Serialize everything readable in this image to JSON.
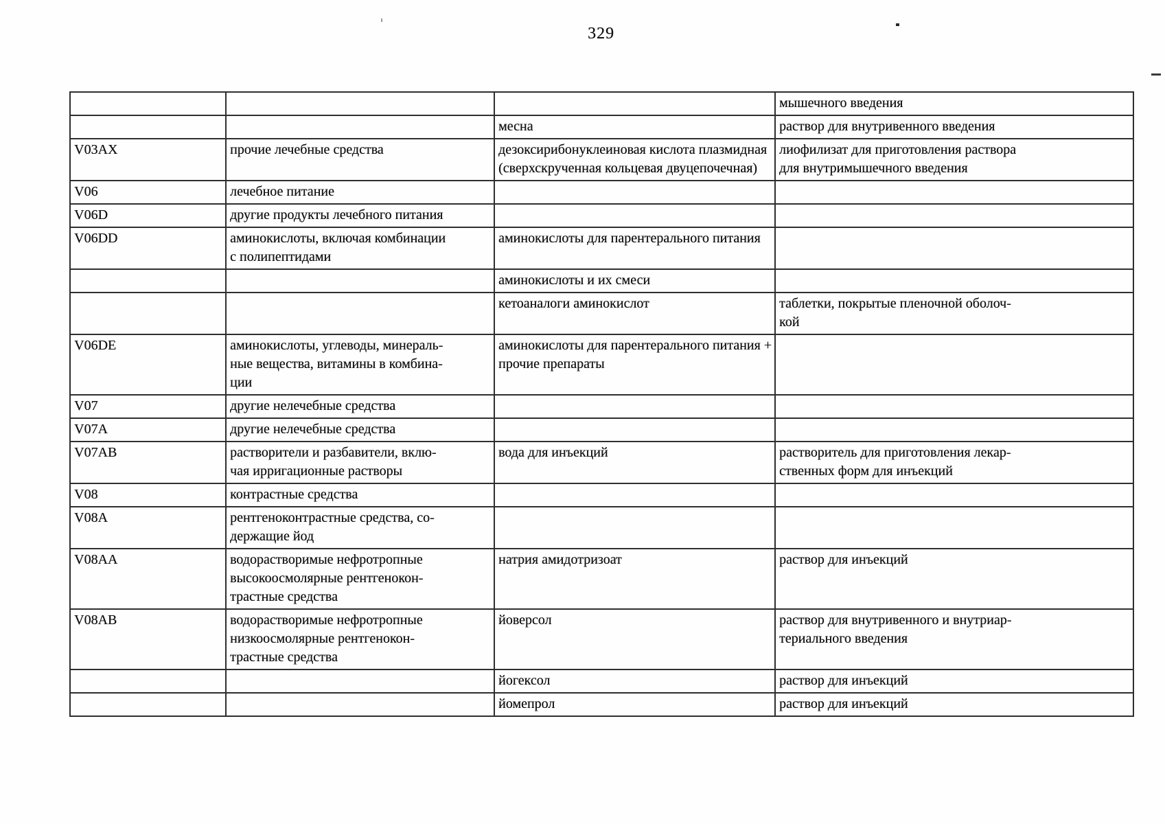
{
  "page": {
    "number": "329"
  },
  "table": {
    "rows": [
      {
        "code": "",
        "group": "",
        "inn": "",
        "form": "мышечного введения"
      },
      {
        "code": "",
        "group": "",
        "inn": "месна",
        "form": "раствор для внутривенного введения"
      },
      {
        "code": "V03AX",
        "group": "прочие лечебные средства",
        "inn": "дезоксирибонуклеиновая кислота плазмидная\n(сверхскрученная кольцевая двуцепочечная)",
        "form": "лиофилизат для приготовления раствора\nдля внутримышечного введения"
      },
      {
        "code": "V06",
        "group": "лечебное питание",
        "inn": "",
        "form": ""
      },
      {
        "code": "V06D",
        "group": "другие продукты лечебного питания",
        "inn": "",
        "form": ""
      },
      {
        "code": "V06DD",
        "group": "аминокислоты, включая комбинации\nс полипептидами",
        "inn": "аминокислоты для парентерального питания",
        "form": ""
      },
      {
        "code": "",
        "group": "",
        "inn": "аминокислоты и их смеси",
        "form": ""
      },
      {
        "code": "",
        "group": "",
        "inn": "кетоаналоги аминокислот",
        "form": "таблетки, покрытые пленочной оболоч-\nкой"
      },
      {
        "code": "V06DE",
        "group": "аминокислоты, углеводы, минераль-\nные вещества, витамины в комбина-\nции",
        "inn": "аминокислоты для парентерального питания +\nпрочие препараты",
        "form": ""
      },
      {
        "code": "V07",
        "group": "другие нелечебные средства",
        "inn": "",
        "form": ""
      },
      {
        "code": "V07A",
        "group": "другие нелечебные средства",
        "inn": "",
        "form": ""
      },
      {
        "code": "V07AB",
        "group": "растворители и разбавители, вклю-\nчая ирригационные растворы",
        "inn": "вода для инъекций",
        "form": "растворитель для приготовления лекар-\nственных форм для инъекций"
      },
      {
        "code": "V08",
        "group": "контрастные средства",
        "inn": "",
        "form": ""
      },
      {
        "code": "V08A",
        "group": "рентгеноконтрастные средства, со-\nдержащие йод",
        "inn": "",
        "form": ""
      },
      {
        "code": "V08AA",
        "group": "водорастворимые нефротропные\nвысокоосмолярные рентгенокон-\nтрастные средства",
        "inn": "натрия амидотризоат",
        "form": "раствор для инъекций"
      },
      {
        "code": "V08AB",
        "group": "водорастворимые нефротропные\nнизкоосмолярные рентгенокон-\nтрастные средства",
        "inn": "йоверсол",
        "form": "раствор для внутривенного и внутриар-\nтериального введения"
      },
      {
        "code": "",
        "group": "",
        "inn": "йогексол",
        "form": "раствор для инъекций"
      },
      {
        "code": "",
        "group": "",
        "inn": "йомепрол",
        "form": "раствор для инъекций"
      }
    ]
  }
}
